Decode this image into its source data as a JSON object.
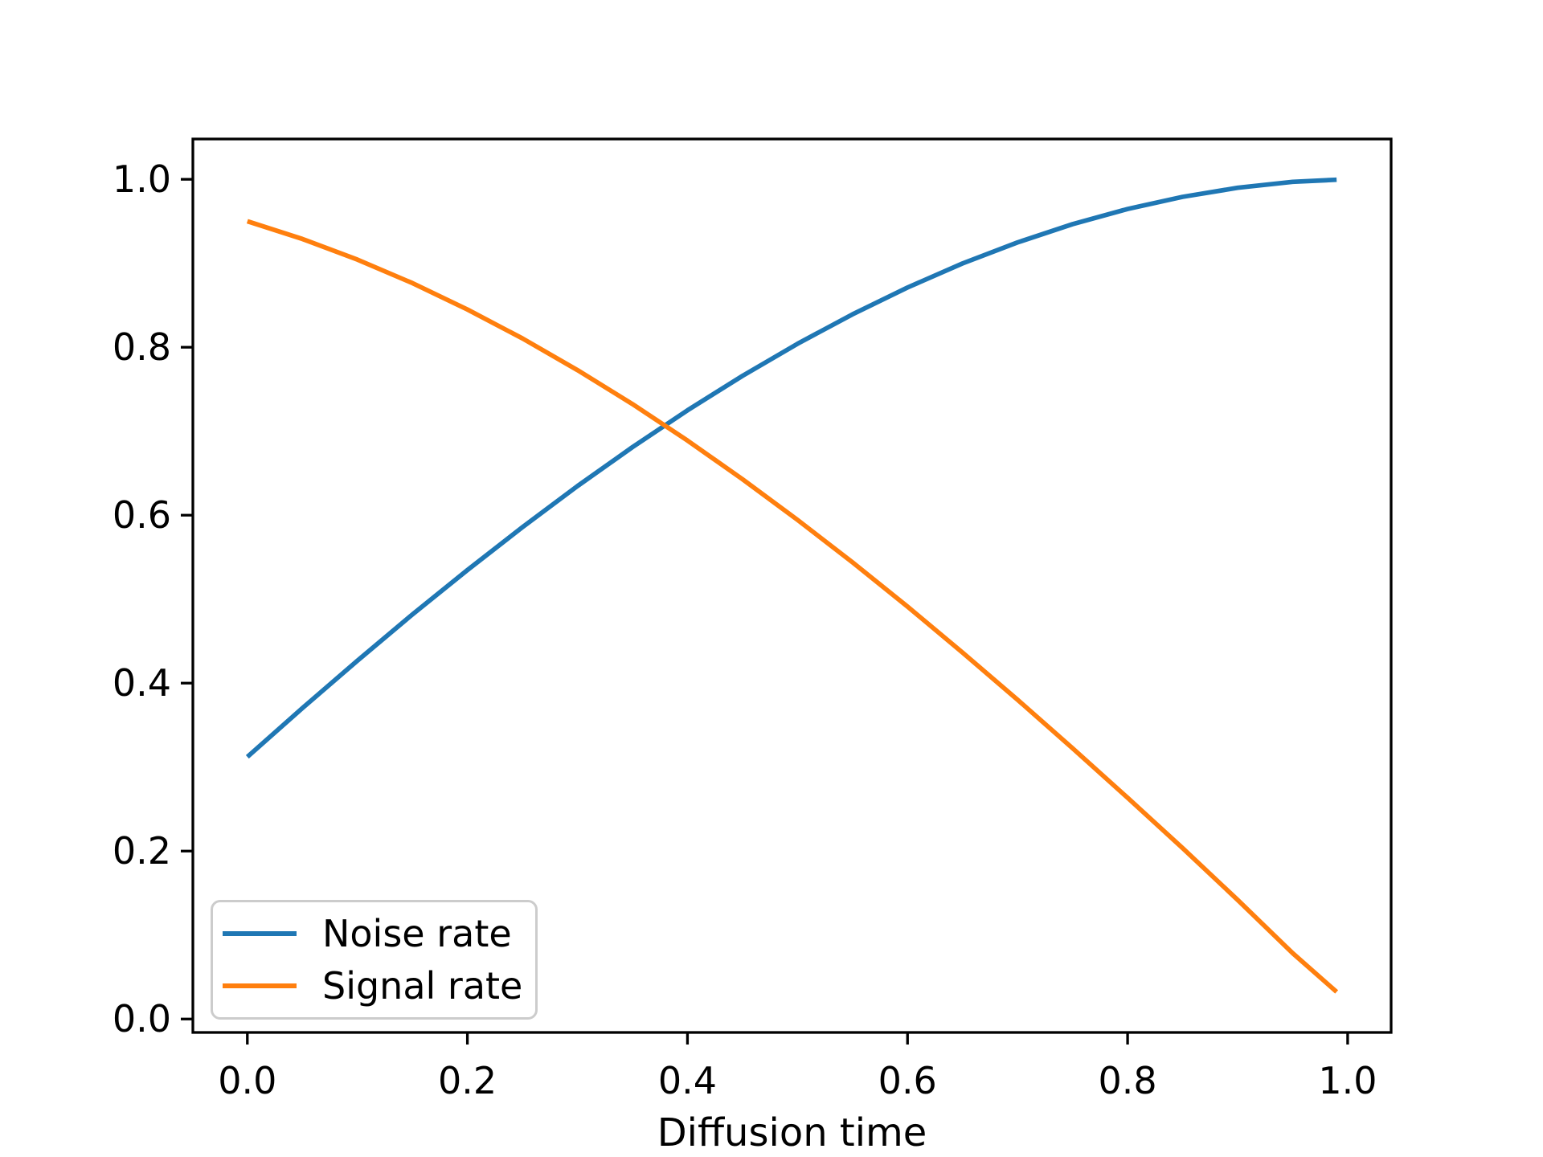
{
  "figure": {
    "background": "#ffffff"
  },
  "chart_data": {
    "type": "line",
    "title": "",
    "xlabel": "Diffusion time",
    "ylabel": "",
    "grid": false,
    "axis_color": "#000000",
    "xlim": [
      -0.0495,
      1.0395
    ],
    "ylim": [
      -0.016,
      1.048
    ],
    "x_ticks": {
      "values": [
        0.0,
        0.2,
        0.4,
        0.6,
        0.8,
        1.0
      ],
      "labels": [
        "0.0",
        "0.2",
        "0.4",
        "0.6",
        "0.8",
        "1.0"
      ]
    },
    "y_ticks": {
      "values": [
        0.0,
        0.2,
        0.4,
        0.6,
        0.8,
        1.0
      ],
      "labels": [
        "0.0",
        "0.2",
        "0.4",
        "0.6",
        "0.8",
        "1.0"
      ]
    },
    "x": [
      0.0,
      0.05,
      0.1,
      0.15,
      0.2,
      0.25,
      0.3,
      0.35,
      0.4,
      0.45,
      0.5,
      0.55,
      0.6,
      0.65,
      0.7,
      0.75,
      0.8,
      0.85,
      0.9,
      0.95,
      0.99
    ],
    "series": [
      {
        "name": "Noise rate",
        "color": "#1f77b4",
        "values": [
          0.3122,
          0.3702,
          0.4267,
          0.4817,
          0.5347,
          0.5858,
          0.6346,
          0.6811,
          0.7249,
          0.7659,
          0.8041,
          0.8392,
          0.8712,
          0.8998,
          0.9249,
          0.9466,
          0.9647,
          0.9791,
          0.9899,
          0.997,
          0.9995
        ]
      },
      {
        "name": "Signal rate",
        "color": "#ff7f0e",
        "values": [
          0.95,
          0.929,
          0.9044,
          0.8764,
          0.845,
          0.8105,
          0.7728,
          0.7323,
          0.6889,
          0.6429,
          0.5945,
          0.5438,
          0.4911,
          0.4364,
          0.3802,
          0.3224,
          0.2635,
          0.2036,
          0.1419,
          0.0784,
          0.0323
        ]
      }
    ],
    "legend": {
      "position": "lower left",
      "entries": [
        "Noise rate",
        "Signal rate"
      ]
    }
  }
}
